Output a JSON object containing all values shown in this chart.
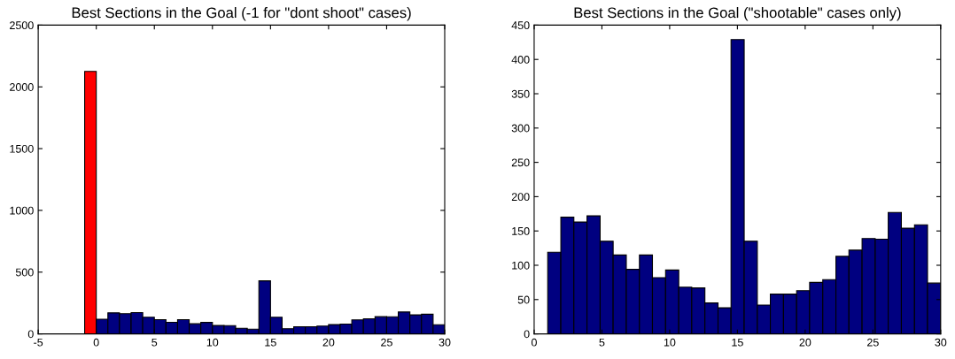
{
  "chart_data": [
    {
      "type": "histogram",
      "title": "Best Sections in the Goal (-1 for \"dont shoot\" cases)",
      "bins": [
        -1,
        0,
        1,
        2,
        3,
        4,
        5,
        6,
        7,
        8,
        9,
        10,
        11,
        12,
        13,
        14,
        15,
        16,
        17,
        18,
        19,
        20,
        21,
        22,
        23,
        24,
        25,
        26,
        27,
        28,
        29,
        30
      ],
      "values": [
        2125,
        119,
        170,
        163,
        172,
        135,
        115,
        94,
        115,
        82,
        93,
        68,
        67,
        45,
        38,
        429,
        135,
        42,
        58,
        58,
        63,
        75,
        79,
        113,
        122,
        139,
        138,
        177,
        154,
        159,
        74
      ],
      "colors": [
        "#ff0000",
        "#000080",
        "#000080",
        "#000080",
        "#000080",
        "#000080",
        "#000080",
        "#000080",
        "#000080",
        "#000080",
        "#000080",
        "#000080",
        "#000080",
        "#000080",
        "#000080",
        "#000080",
        "#000080",
        "#000080",
        "#000080",
        "#000080",
        "#000080",
        "#000080",
        "#000080",
        "#000080",
        "#000080",
        "#000080",
        "#000080",
        "#000080",
        "#000080",
        "#000080",
        "#000080"
      ],
      "xlim": [
        -5,
        30
      ],
      "xticks": [
        -5,
        0,
        5,
        10,
        15,
        20,
        25,
        30
      ],
      "ylim": [
        0,
        2500
      ],
      "yticks": [
        0,
        500,
        1000,
        1500,
        2000,
        2500
      ],
      "grid": false,
      "legend": false
    },
    {
      "type": "histogram",
      "title": "Best Sections in the Goal (\"shootable\" cases only)",
      "bins": [
        1,
        1.97,
        2.93,
        3.9,
        4.87,
        5.83,
        6.8,
        7.77,
        8.73,
        9.7,
        10.67,
        11.63,
        12.6,
        13.57,
        14.53,
        15.5,
        16.47,
        17.43,
        18.4,
        19.37,
        20.33,
        21.3,
        22.27,
        23.23,
        24.2,
        25.17,
        26.13,
        27.1,
        28.07,
        29.03,
        30
      ],
      "values": [
        119,
        170,
        163,
        172,
        135,
        115,
        94,
        115,
        82,
        93,
        68,
        67,
        45,
        38,
        429,
        135,
        42,
        58,
        58,
        63,
        75,
        79,
        113,
        122,
        139,
        138,
        177,
        154,
        159,
        74
      ],
      "color": "#000080",
      "xlim": [
        0,
        30
      ],
      "xticks": [
        0,
        5,
        10,
        15,
        20,
        25,
        30
      ],
      "ylim": [
        0,
        450
      ],
      "yticks": [
        0,
        50,
        100,
        150,
        200,
        250,
        300,
        350,
        400,
        450
      ],
      "grid": false,
      "legend": false
    }
  ]
}
